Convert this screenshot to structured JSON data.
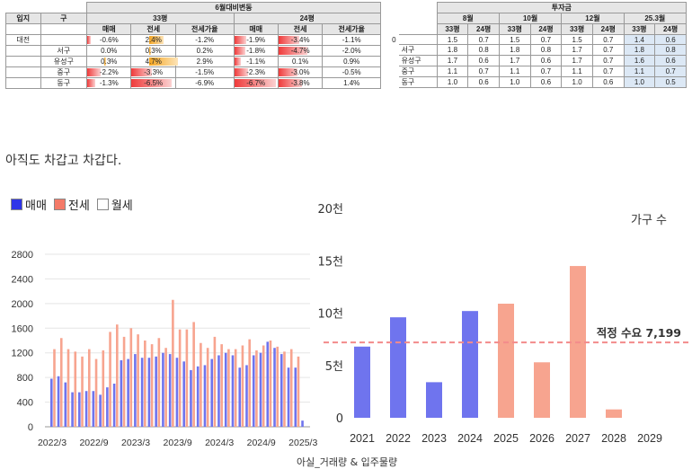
{
  "table_left": {
    "group_header": "6월대비변동",
    "h_region": "입지",
    "h_gu": "구",
    "size_33": "33평",
    "size_24": "24평",
    "sub_headers": [
      "매매",
      "전세",
      "전세가율",
      "매매",
      "전세",
      "전세가율"
    ],
    "rows": [
      {
        "region": "대전",
        "gu": "",
        "vals": [
          "-0.6%",
          "2.4%",
          "-1.2%",
          "-1.9%",
          "-3.4%",
          "-1.1%"
        ]
      },
      {
        "region": "",
        "gu": "서구",
        "vals": [
          "0.0%",
          "0.3%",
          "0.2%",
          "-1.8%",
          "-4.7%",
          "-2.0%"
        ]
      },
      {
        "region": "",
        "gu": "유성구",
        "vals": [
          "0.3%",
          "4.7%",
          "2.9%",
          "-1.1%",
          "0.1%",
          "0.9%"
        ]
      },
      {
        "region": "",
        "gu": "중구",
        "vals": [
          "-2.2%",
          "-3.3%",
          "-1.5%",
          "-2.3%",
          "-3.0%",
          "-0.5%"
        ]
      },
      {
        "region": "",
        "gu": "동구",
        "vals": [
          "-1.3%",
          "-6.5%",
          "-6.9%",
          "-6.7%",
          "-3.8%",
          "1.4%"
        ]
      }
    ]
  },
  "table_right": {
    "group_header": "투자금",
    "periods": [
      "8월",
      "10월",
      "12월",
      "25.3월"
    ],
    "sub_headers": [
      "33평",
      "24평",
      "33평",
      "24평",
      "33평",
      "24평",
      "33평",
      "24평"
    ],
    "rows": [
      {
        "zero": "0",
        "gu": "",
        "vals": [
          "1.5",
          "0.7",
          "1.5",
          "0.7",
          "1.5",
          "0.7",
          "1.4",
          "0.6"
        ]
      },
      {
        "zero": "",
        "gu": "서구",
        "vals": [
          "1.8",
          "0.8",
          "1.8",
          "0.8",
          "1.7",
          "0.7",
          "1.8",
          "0.8"
        ]
      },
      {
        "zero": "",
        "gu": "유성구",
        "vals": [
          "1.7",
          "0.6",
          "1.7",
          "0.6",
          "1.7",
          "0.7",
          "1.6",
          "0.6"
        ]
      },
      {
        "zero": "",
        "gu": "중구",
        "vals": [
          "1.1",
          "0.7",
          "1.1",
          "0.7",
          "1.1",
          "0.7",
          "1.1",
          "0.7"
        ]
      },
      {
        "zero": "",
        "gu": "동구",
        "vals": [
          "1.0",
          "0.6",
          "1.0",
          "0.6",
          "1.0",
          "0.6",
          "1.0",
          "0.5"
        ]
      }
    ]
  },
  "caption": "아직도 차갑고 차갑다.",
  "source_note": "아실_거래량 & 입주물량",
  "colors": {
    "blue": "#6f74ee",
    "salmon": "#f7a48f",
    "red": "#ef3b3b",
    "dash": "#f38b8b"
  },
  "chart_data": [
    {
      "type": "bar",
      "legend": [
        "매매",
        "전세",
        "월세"
      ],
      "ylim": [
        0,
        2800
      ],
      "yticks": [
        0,
        400,
        800,
        1200,
        1600,
        2000,
        2400,
        2800
      ],
      "xtick_labels": [
        "2022/3",
        "2022/9",
        "2023/3",
        "2023/9",
        "2024/3",
        "2024/9",
        "2025/3"
      ],
      "categories": [
        "2022/3",
        "2022/4",
        "2022/5",
        "2022/6",
        "2022/7",
        "2022/8",
        "2022/9",
        "2022/10",
        "2022/11",
        "2022/12",
        "2023/1",
        "2023/2",
        "2023/3",
        "2023/4",
        "2023/5",
        "2023/6",
        "2023/7",
        "2023/8",
        "2023/9",
        "2023/10",
        "2023/11",
        "2023/12",
        "2024/1",
        "2024/2",
        "2024/3",
        "2024/4",
        "2024/5",
        "2024/6",
        "2024/7",
        "2024/8",
        "2024/9",
        "2024/10",
        "2024/11",
        "2024/12",
        "2025/1",
        "2025/2",
        "2025/3"
      ],
      "series": [
        {
          "name": "매매",
          "values": [
            780,
            820,
            720,
            560,
            560,
            580,
            580,
            520,
            640,
            700,
            1080,
            1100,
            1180,
            1120,
            1120,
            1140,
            1200,
            1180,
            1120,
            1060,
            920,
            980,
            1000,
            1100,
            1160,
            1200,
            1160,
            960,
            1000,
            1160,
            1200,
            1380,
            1280,
            1180,
            960,
            960,
            100
          ]
        },
        {
          "name": "전세",
          "values": [
            1260,
            1440,
            1260,
            1220,
            1140,
            1260,
            1100,
            1240,
            1540,
            1660,
            1460,
            1600,
            1500,
            1400,
            1340,
            1440,
            1280,
            2060,
            1580,
            1580,
            1700,
            1360,
            1280,
            1460,
            1340,
            1260,
            1260,
            1320,
            1420,
            1240,
            1320,
            1400,
            1300,
            1220,
            1260,
            1140,
            0
          ]
        },
        {
          "name": "월세",
          "values": [
            0,
            0,
            0,
            0,
            0,
            0,
            0,
            0,
            0,
            0,
            0,
            0,
            0,
            0,
            0,
            0,
            0,
            0,
            0,
            0,
            0,
            0,
            0,
            0,
            0,
            0,
            0,
            0,
            0,
            0,
            0,
            0,
            0,
            0,
            0,
            0,
            0
          ]
        }
      ]
    },
    {
      "type": "bar",
      "title": "가구 수",
      "categories": [
        "2021",
        "2022",
        "2023",
        "2024",
        "2025",
        "2026",
        "2027",
        "2028",
        "2029"
      ],
      "values": [
        6800,
        9600,
        3400,
        10200,
        10900,
        5300,
        14500,
        800,
        0
      ],
      "ylim": [
        0,
        20000
      ],
      "ytick_labels": [
        "0",
        "5천",
        "10천",
        "15천",
        "20천"
      ],
      "yticks": [
        0,
        5000,
        10000,
        15000,
        20000
      ],
      "reference_line": {
        "value": 7199,
        "label": "적정 수요 7,199"
      }
    }
  ]
}
